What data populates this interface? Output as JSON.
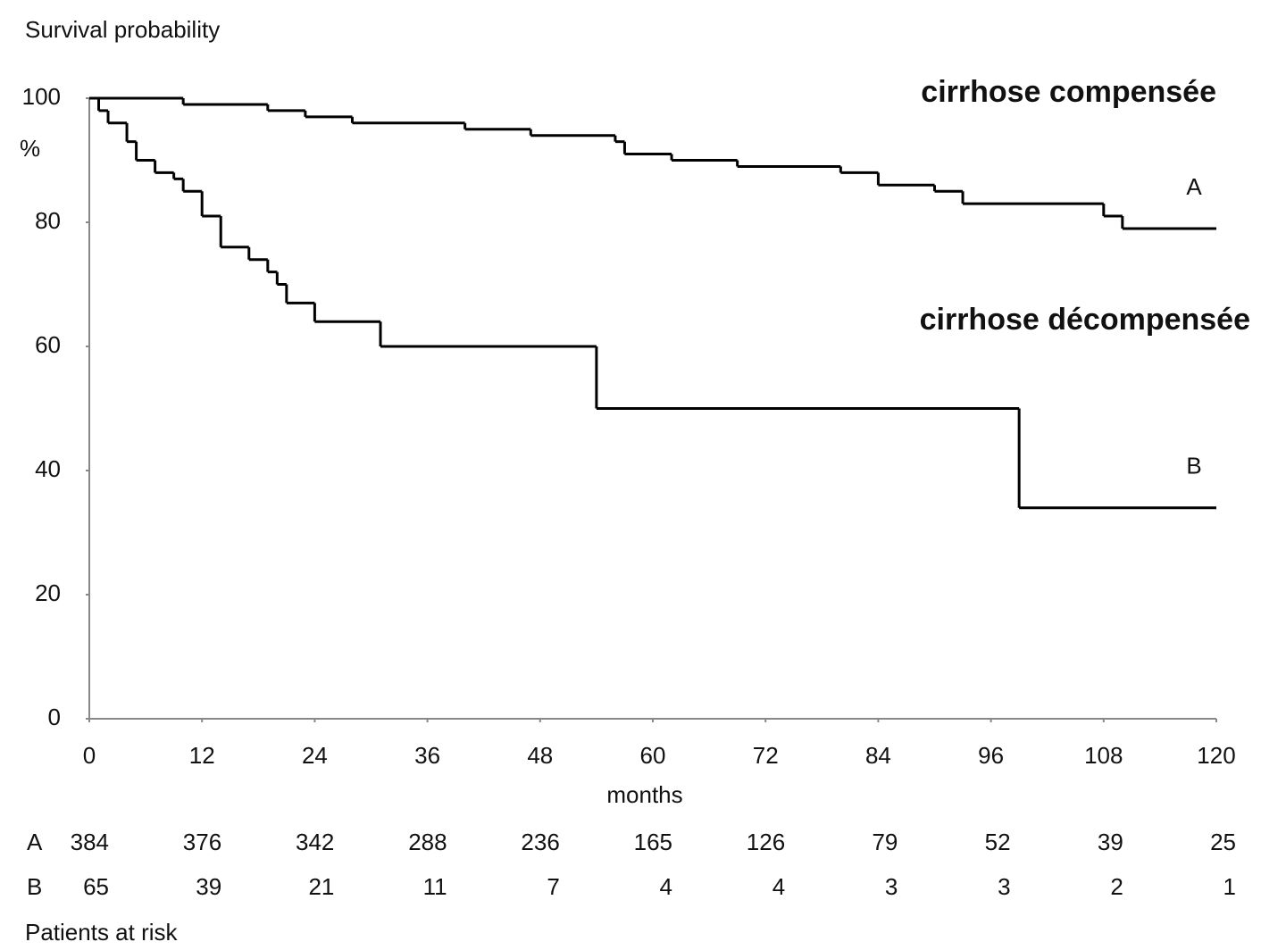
{
  "chart_data": {
    "type": "step",
    "title": "Survival probability",
    "y_unit": "%",
    "x_label": "months",
    "xlim": [
      0,
      120
    ],
    "ylim": [
      0,
      100
    ],
    "xticks": [
      0,
      12,
      24,
      36,
      48,
      60,
      72,
      84,
      96,
      108,
      120
    ],
    "yticks": [
      0,
      20,
      40,
      60,
      80,
      100
    ],
    "grid": false,
    "series": [
      {
        "name": "A",
        "color": "#000000",
        "x": [
          0,
          10,
          19,
          23,
          28,
          40,
          47,
          56,
          57,
          62,
          69,
          80,
          84,
          90,
          93,
          108,
          110
        ],
        "values": [
          100,
          99,
          98,
          97,
          96,
          95,
          94,
          93,
          91,
          90,
          89,
          88,
          86,
          85,
          83,
          81,
          79
        ]
      },
      {
        "name": "B",
        "color": "#000000",
        "x": [
          0,
          1,
          2,
          4,
          5,
          7,
          9,
          10,
          12,
          14,
          17,
          19,
          20,
          21,
          24,
          31,
          54,
          99
        ],
        "values": [
          100,
          98,
          96,
          93,
          90,
          88,
          87,
          85,
          81,
          76,
          74,
          72,
          70,
          67,
          64,
          60,
          50,
          34
        ]
      }
    ],
    "annotations": [
      {
        "text": "cirrhose compensée",
        "color": "#a50021"
      },
      {
        "text": "cirrhose décompensée",
        "color": "#a50021"
      }
    ],
    "risk_table": {
      "title": "Patients at risk",
      "rows": [
        {
          "name": "A",
          "values": [
            384,
            376,
            342,
            288,
            236,
            165,
            126,
            79,
            52,
            39,
            25
          ]
        },
        {
          "name": "B",
          "values": [
            65,
            39,
            21,
            11,
            7,
            4,
            4,
            3,
            3,
            2,
            1
          ]
        }
      ]
    }
  }
}
